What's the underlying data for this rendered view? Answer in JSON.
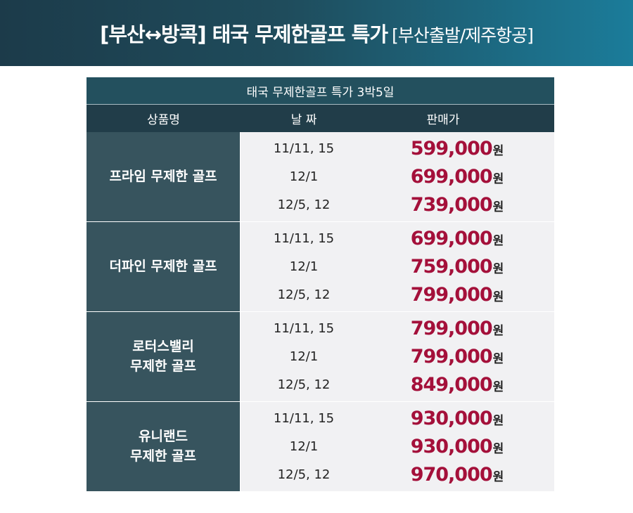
{
  "header": {
    "title": "[부산↔방콕] 태국 무제한골프 특가",
    "subtitle": "[부산출발/제주항공]"
  },
  "table": {
    "title": "태국 무제한골프 특가 3박5일",
    "columns": [
      "상품명",
      "날 짜",
      "판매가"
    ],
    "currency": "원",
    "products": [
      {
        "name": "프라임 무제한 골프",
        "options": [
          {
            "date": "11/11, 15",
            "price": "599,000"
          },
          {
            "date": "12/1",
            "price": "699,000"
          },
          {
            "date": "12/5, 12",
            "price": "739,000"
          }
        ]
      },
      {
        "name": "더파인 무제한 골프",
        "options": [
          {
            "date": "11/11, 15",
            "price": "699,000"
          },
          {
            "date": "12/1",
            "price": "759,000"
          },
          {
            "date": "12/5, 12",
            "price": "799,000"
          }
        ]
      },
      {
        "name": "로터스밸리\n무제한 골프",
        "options": [
          {
            "date": "11/11, 15",
            "price": "799,000"
          },
          {
            "date": "12/1",
            "price": "799,000"
          },
          {
            "date": "12/5, 12",
            "price": "849,000"
          }
        ]
      },
      {
        "name": "유니랜드\n무제한 골프",
        "options": [
          {
            "date": "11/11, 15",
            "price": "930,000"
          },
          {
            "date": "12/1",
            "price": "930,000"
          },
          {
            "date": "12/5, 12",
            "price": "970,000"
          }
        ]
      }
    ]
  },
  "colors": {
    "price": "#a4103a",
    "header_dark": "#1c3b4a",
    "header_light": "#1b7c9a",
    "table_title_bg": "#23505e",
    "table_head_bg": "#213d49",
    "product_bg": "#37545e",
    "option_bg": "#f1f1f3"
  }
}
